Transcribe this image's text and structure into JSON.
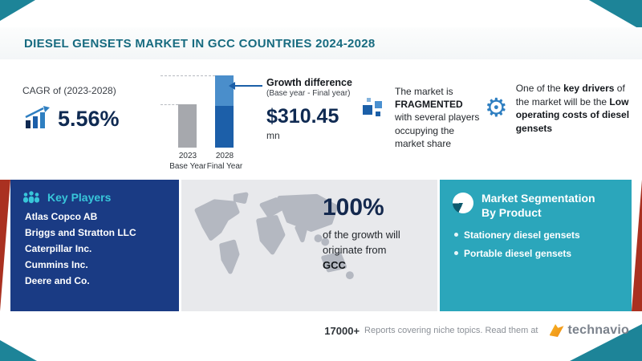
{
  "header": {
    "title": "DIESEL GENSETS MARKET IN GCC COUNTRIES 2024-2028"
  },
  "stats": {
    "cagr": {
      "label": "CAGR of (2023-2028)",
      "value": "5.56%"
    },
    "chart": {
      "bars": [
        {
          "year": "2023",
          "label": "Base Year"
        },
        {
          "year": "2028",
          "label": "Final Year"
        }
      ]
    },
    "growth": {
      "title": "Growth difference",
      "sub": "(Base year - Final year)",
      "value": "$310.45",
      "unit": "mn"
    },
    "fragmented": {
      "pre": "The market is ",
      "highlight": "FRAGMENTED",
      "post": " with several players occupying the market share"
    },
    "driver": {
      "seg1": "One of the ",
      "bold1": "key drivers",
      "seg2": " of the market will be the ",
      "bold2": "Low operating costs of diesel gensets"
    }
  },
  "chart_data": {
    "type": "bar",
    "title": "Growth difference (Base year - Final year)",
    "categories": [
      "2023 Base Year",
      "2028 Final Year"
    ],
    "values": [
      0.6,
      1.0
    ],
    "values_note": "relative bar heights; no numeric axis shown in figure",
    "annotations": {
      "growth_difference": "$310.45 mn",
      "cagr_2023_2028": "5.56%"
    },
    "bar_colors": [
      "#a6a8ad",
      "#1c5fa9"
    ],
    "legend": "none",
    "grid": "off"
  },
  "key_players": {
    "title": "Key Players",
    "items": [
      "Atlas Copco AB",
      "Briggs and Stratton LLC",
      "Caterpillar Inc.",
      "Cummins Inc.",
      "Deere and Co."
    ]
  },
  "growth_origin": {
    "value": "100%",
    "line1": "of the growth will",
    "line2": "originate from",
    "region": "GCC"
  },
  "segmentation": {
    "title": "Market Segmentation By Product",
    "items": [
      "Stationery diesel gensets",
      "Portable diesel gensets"
    ]
  },
  "footer": {
    "count": "17000+",
    "text": "Reports covering niche topics. Read them at",
    "brand": "technavio"
  },
  "icons": {
    "gear_glyph": "⚙"
  },
  "colors": {
    "teal_corner": "#1d8498",
    "header_text": "#176b80",
    "navy_text": "#0f2a52",
    "blue_box": "#1a3b84",
    "teal_box": "#2ba6bb",
    "red_accent": "#aa3121",
    "players_title": "#38c6da",
    "bar_base": "#a6a8ad",
    "bar_final": "#1c5fa9",
    "logo_orange": "#ef8c15"
  }
}
